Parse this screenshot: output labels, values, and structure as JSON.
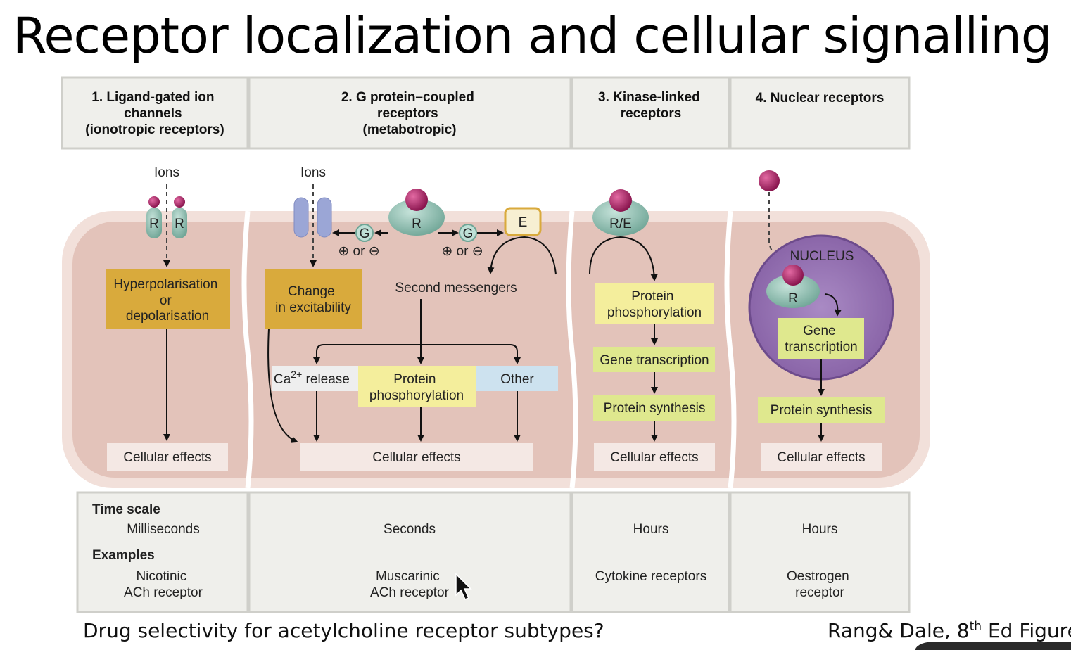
{
  "title": "Receptor localization and cellular signalling",
  "columns": [
    {
      "header": [
        "1. Ligand-gated ion",
        "channels",
        "(ionotropic receptors)"
      ],
      "time": "Milliseconds",
      "example": [
        "Nicotinic",
        "ACh receptor"
      ]
    },
    {
      "header": [
        "2. G protein–coupled",
        "receptors",
        "(metabotropic)"
      ],
      "time": "Seconds",
      "example": [
        "Muscarinic",
        "ACh receptor"
      ]
    },
    {
      "header": [
        "3. Kinase-linked",
        "receptors"
      ],
      "time": "Hours",
      "example": [
        "Cytokine receptors"
      ]
    },
    {
      "header": [
        "4. Nuclear receptors"
      ],
      "time": "Hours",
      "example": [
        "Oestrogen",
        "receptor"
      ]
    }
  ],
  "labels": {
    "ions": "Ions",
    "receptor": "R",
    "receptor_effector": "R/E",
    "g_protein": "G",
    "effector": "E",
    "plus_minus": "⊕ or ⊖",
    "hyper": [
      "Hyperpolarisation",
      "or",
      "depolarisation"
    ],
    "excitability": [
      "Change",
      "in excitability"
    ],
    "second_messengers": "Second messengers",
    "ca_release": "Ca",
    "ca_sup": "2+",
    "release": " release",
    "protein_phosphorylation": [
      "Protein",
      "phosphorylation"
    ],
    "other": "Other",
    "gene_transcription": "Gene transcription",
    "gene_transcription_split": [
      "Gene",
      "transcription"
    ],
    "protein_synthesis": "Protein synthesis",
    "nucleus": "NUCLEUS",
    "cellular_effects": "Cellular effects",
    "time_scale": "Time scale",
    "examples": "Examples"
  },
  "colors": {
    "cell": "#e3c3ba",
    "cell_rim": "#f4e4df",
    "gold_box": "#d9aa3c",
    "yellow_box": "#f4ee9c",
    "green_box": "#dfe88e",
    "blue_box": "#cde2ef",
    "grey_box": "#eeeeee",
    "effects_box": "#f4e8e4",
    "receptor": "#8fbfb2",
    "ligand": "#a0185a",
    "channel": "#9ba6d6",
    "nucleus": "#9a6fb3",
    "header_panel": "#efefeb"
  },
  "footer": {
    "question": "Drug selectivity for acetylcholine receptor subtypes?",
    "citation_prefix": "Rang& Dale, 8",
    "citation_sup": "th",
    "citation_suffix": " Ed Figure"
  }
}
